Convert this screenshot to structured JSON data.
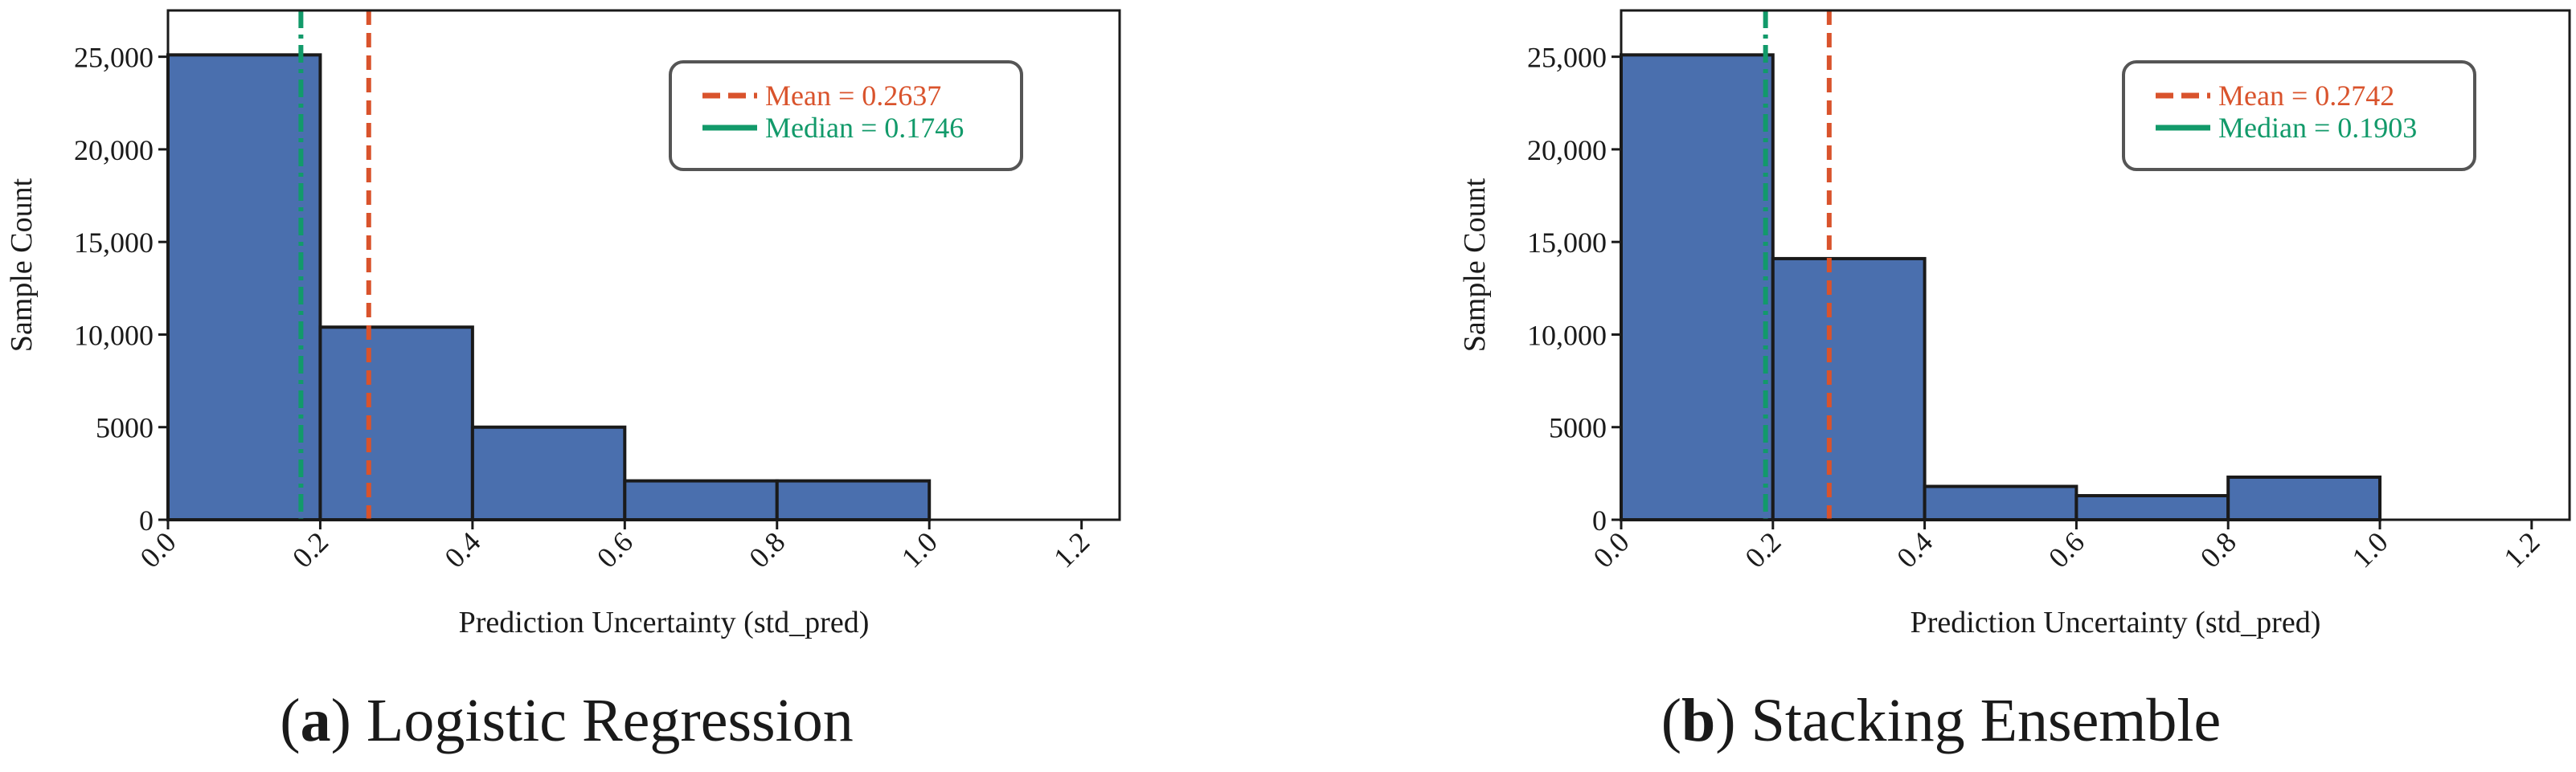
{
  "chart_data": [
    {
      "type": "bar",
      "panel_letter": "a",
      "caption": "Logistic Regression",
      "xlabel": "Prediction Uncertainty (std_pred)",
      "ylabel": "Sample Count",
      "xlim": [
        0.0,
        1.25
      ],
      "ylim": [
        0,
        27500
      ],
      "x_ticks": [
        "0.0",
        "0.2",
        "0.4",
        "0.6",
        "0.8",
        "1.0",
        "1.2"
      ],
      "y_ticks": [
        "0",
        "5000",
        "10,000",
        "15,000",
        "20,000",
        "25,000"
      ],
      "bins": [
        {
          "x0": 0.0,
          "x1": 0.2,
          "value": 25100
        },
        {
          "x0": 0.2,
          "x1": 0.4,
          "value": 10400
        },
        {
          "x0": 0.4,
          "x1": 0.6,
          "value": 5000
        },
        {
          "x0": 0.6,
          "x1": 0.8,
          "value": 2100
        },
        {
          "x0": 0.8,
          "x1": 1.0,
          "value": 2100
        }
      ],
      "lines": [
        {
          "label": "Mean = 0.2637",
          "x": 0.2637,
          "style": "dashed",
          "color": "#d9532c"
        },
        {
          "label": "Median = 0.1746",
          "x": 0.1746,
          "style": "dashdot",
          "color": "#129a6a"
        }
      ],
      "bar_color": "#4a6fae",
      "legend_position": "top-right",
      "grid": false
    },
    {
      "type": "bar",
      "panel_letter": "b",
      "caption": "Stacking Ensemble",
      "xlabel": "Prediction Uncertainty (std_pred)",
      "ylabel": "Sample Count",
      "xlim": [
        0.0,
        1.25
      ],
      "ylim": [
        0,
        27500
      ],
      "x_ticks": [
        "0.0",
        "0.2",
        "0.4",
        "0.6",
        "0.8",
        "1.0",
        "1.2"
      ],
      "y_ticks": [
        "0",
        "5000",
        "10,000",
        "15,000",
        "20,000",
        "25,000"
      ],
      "bins": [
        {
          "x0": 0.0,
          "x1": 0.2,
          "value": 25100
        },
        {
          "x0": 0.2,
          "x1": 0.4,
          "value": 14100
        },
        {
          "x0": 0.4,
          "x1": 0.6,
          "value": 1800
        },
        {
          "x0": 0.6,
          "x1": 0.8,
          "value": 1300
        },
        {
          "x0": 0.8,
          "x1": 1.0,
          "value": 2300
        }
      ],
      "lines": [
        {
          "label": "Mean = 0.2742",
          "x": 0.2742,
          "style": "dashed",
          "color": "#d9532c"
        },
        {
          "label": "Median = 0.1903",
          "x": 0.1903,
          "style": "dashdot",
          "color": "#129a6a"
        }
      ],
      "bar_color": "#4a6fae",
      "legend_position": "top-right",
      "grid": false
    }
  ]
}
